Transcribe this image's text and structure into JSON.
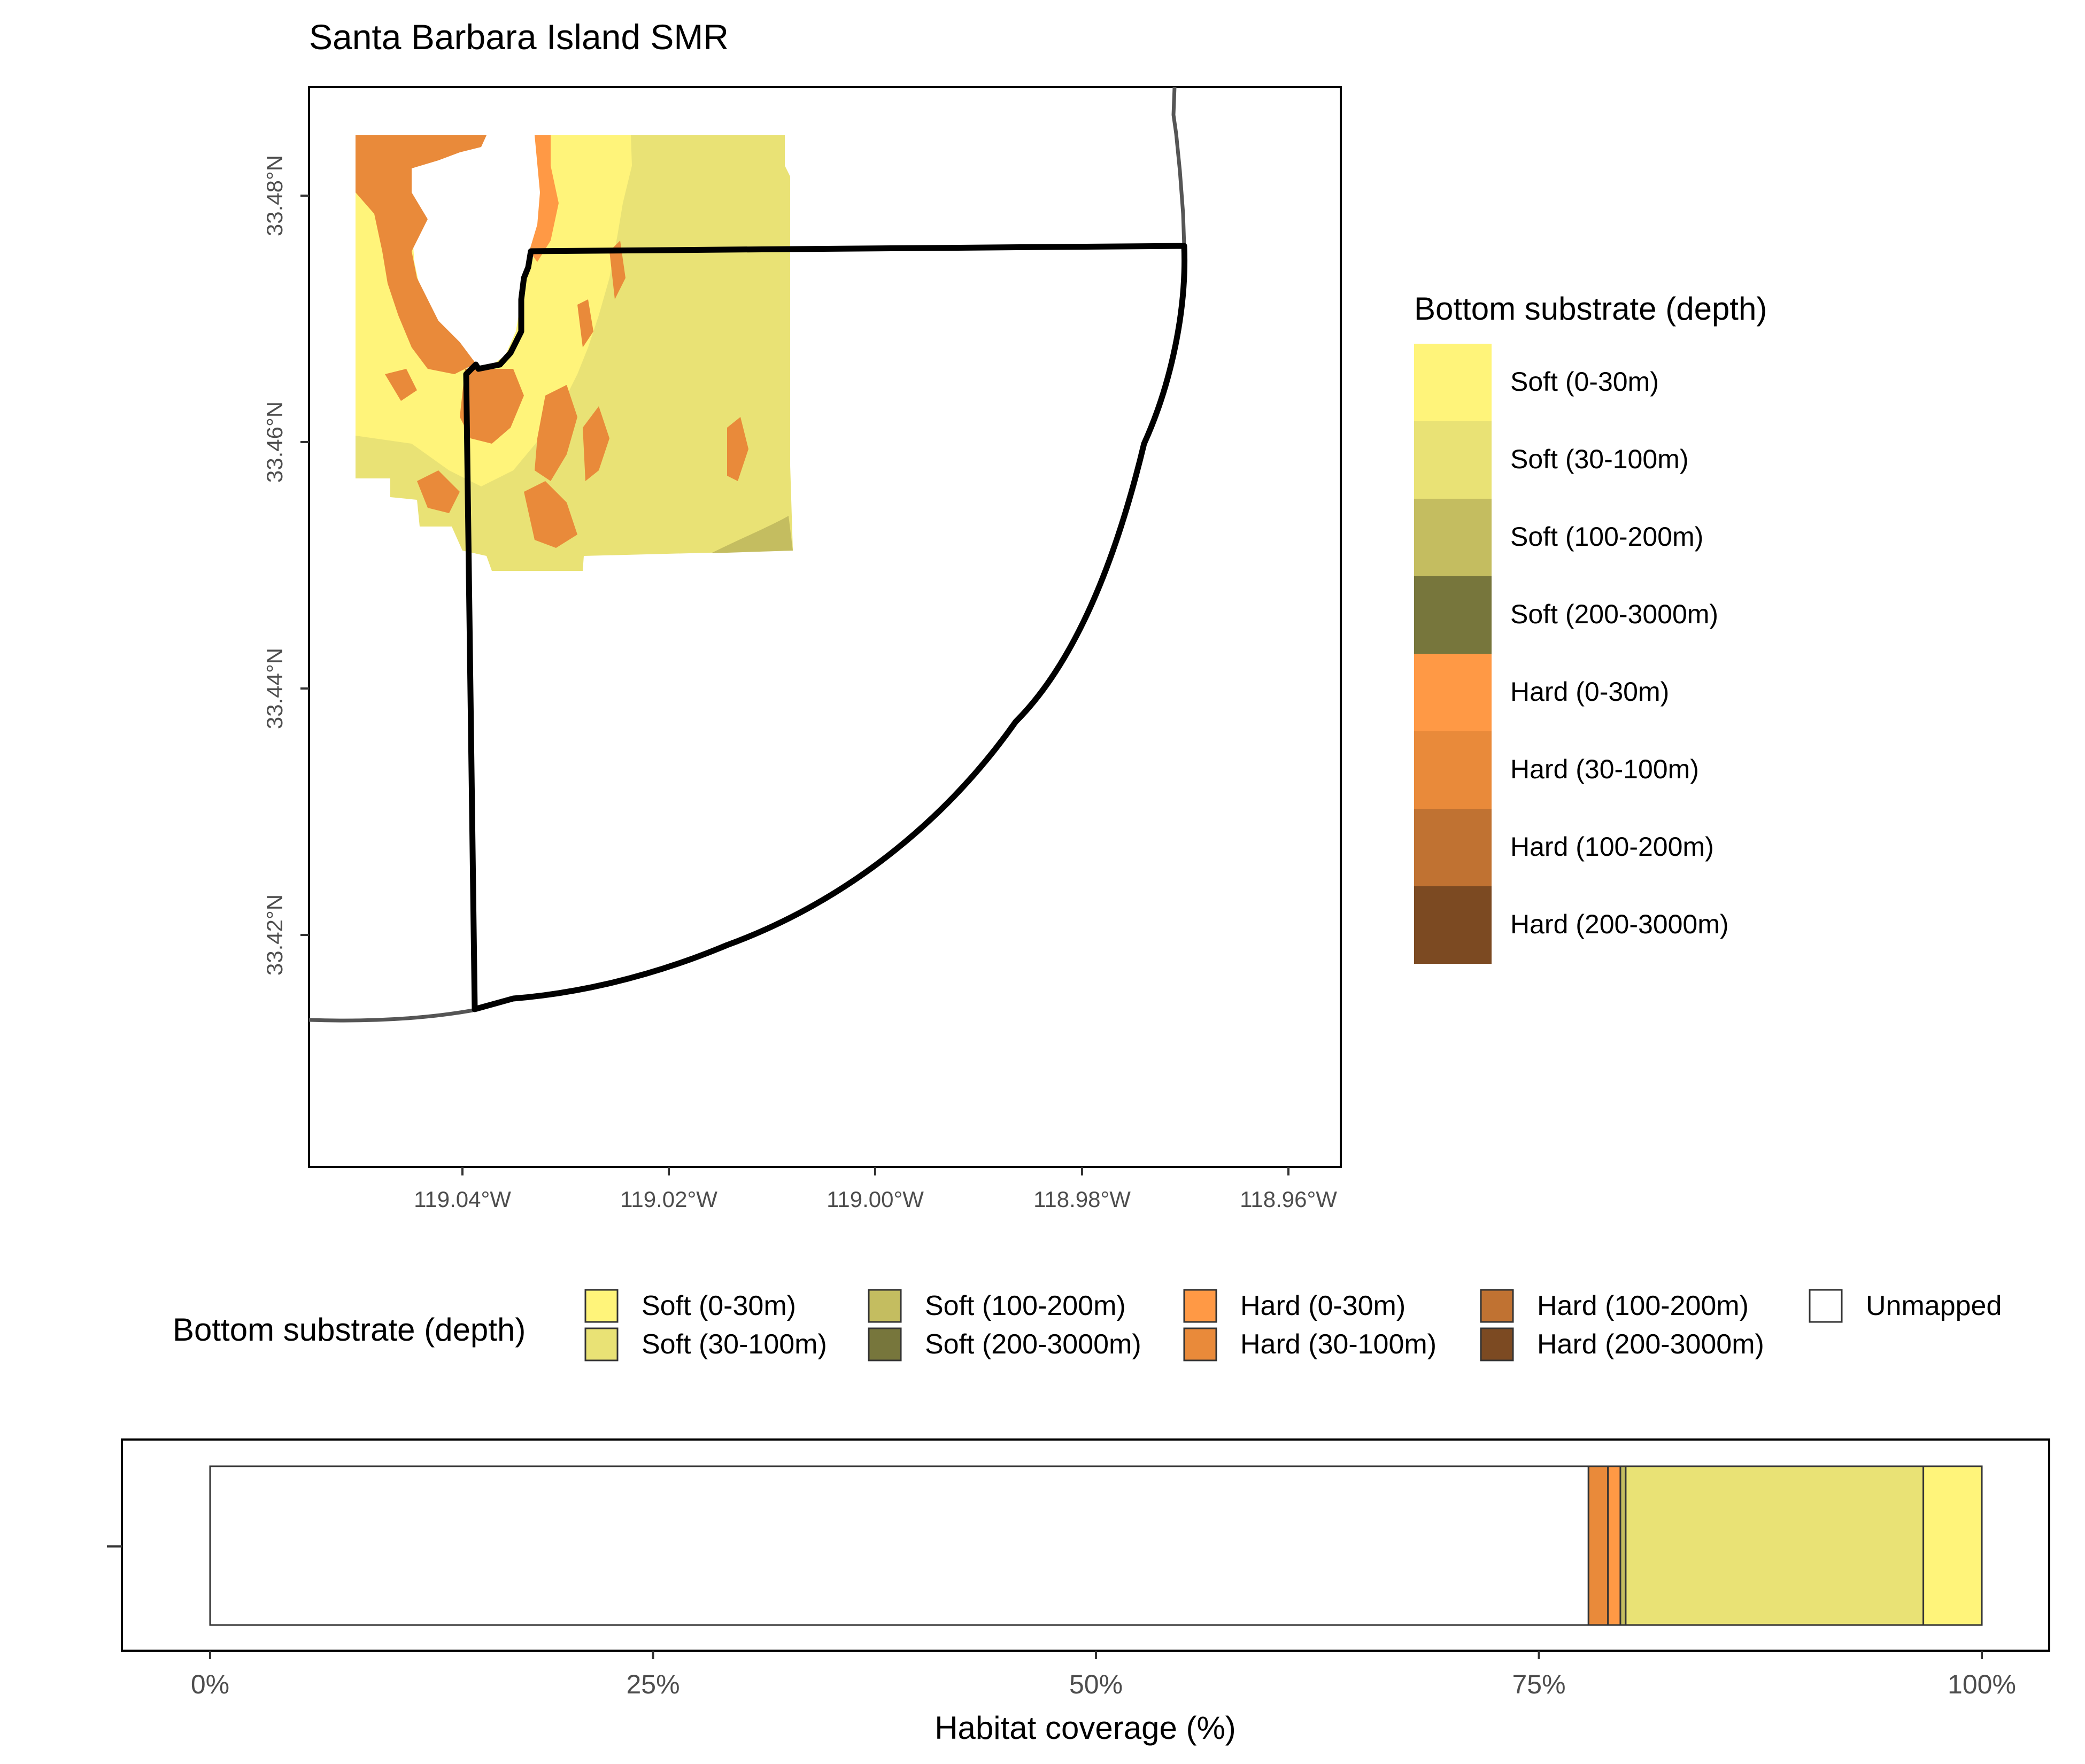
{
  "map": {
    "title": "Santa Barbara Island SMR",
    "lat_ticks": [
      {
        "value": 33.48,
        "label": "33.48°N"
      },
      {
        "value": 33.46,
        "label": "33.46°N"
      },
      {
        "value": 33.44,
        "label": "33.44°N"
      },
      {
        "value": 33.42,
        "label": "33.42°N"
      }
    ],
    "lon_ticks": [
      {
        "value": -119.04,
        "label": "119.04°W"
      },
      {
        "value": -119.02,
        "label": "119.02°W"
      },
      {
        "value": -119.0,
        "label": "119.00°W"
      },
      {
        "value": -118.98,
        "label": "118.98°W"
      },
      {
        "value": -118.96,
        "label": "118.96°W"
      }
    ],
    "legend_title": "Bottom substrate (depth)",
    "legend": [
      {
        "label": "Soft (0-30m)",
        "color": "#FFF47A"
      },
      {
        "label": "Soft (30-100m)",
        "color": "#E9E275"
      },
      {
        "label": "Soft (100-200m)",
        "color": "#C4BD60"
      },
      {
        "label": "Soft (200-3000m)",
        "color": "#77763C"
      },
      {
        "label": "Hard (0-30m)",
        "color": "#FF9945"
      },
      {
        "label": "Hard (30-100m)",
        "color": "#E98A3A"
      },
      {
        "label": "Hard (100-200m)",
        "color": "#C07232"
      },
      {
        "label": "Hard (200-3000m)",
        "color": "#7C4A22"
      }
    ]
  },
  "coverage": {
    "legend_title": "Bottom substrate (depth)",
    "legend": [
      {
        "label": "Soft (0-30m)",
        "color": "#FFF47A"
      },
      {
        "label": "Soft (30-100m)",
        "color": "#E9E275"
      },
      {
        "label": "Soft (100-200m)",
        "color": "#C4BD60"
      },
      {
        "label": "Soft (200-3000m)",
        "color": "#77763C"
      },
      {
        "label": "Hard (0-30m)",
        "color": "#FF9945"
      },
      {
        "label": "Hard (30-100m)",
        "color": "#E98A3A"
      },
      {
        "label": "Hard (100-200m)",
        "color": "#C07232"
      },
      {
        "label": "Hard (200-3000m)",
        "color": "#7C4A22"
      },
      {
        "label": "Unmapped",
        "color": "#FFFFFF"
      }
    ],
    "xlabel": "Habitat coverage (%)",
    "x_ticks": [
      {
        "value": 0,
        "label": "0%"
      },
      {
        "value": 25,
        "label": "25%"
      },
      {
        "value": 50,
        "label": "50%"
      },
      {
        "value": 75,
        "label": "75%"
      },
      {
        "value": 100,
        "label": "100%"
      }
    ]
  },
  "chart_data": {
    "type": "bar",
    "orientation": "horizontal",
    "stacked": true,
    "xlabel": "Habitat coverage (%)",
    "ylabel": "",
    "xlim": [
      0,
      100
    ],
    "series": [
      {
        "name": "Unmapped",
        "values": [
          77.8
        ]
      },
      {
        "name": "Hard (30-100m)",
        "values": [
          1.1
        ]
      },
      {
        "name": "Hard (0-30m)",
        "values": [
          0.7
        ]
      },
      {
        "name": "Soft (100-200m)",
        "values": [
          0.3
        ]
      },
      {
        "name": "Soft (30-100m)",
        "values": [
          16.8
        ]
      },
      {
        "name": "Soft (0-30m)",
        "values": [
          3.3
        ]
      }
    ],
    "segment_colors": {
      "Unmapped": "#FFFFFF",
      "Hard (30-100m)": "#E98A3A",
      "Hard (0-30m)": "#FF9945",
      "Soft (100-200m)": "#C4BD60",
      "Soft (30-100m)": "#E9E275",
      "Soft (0-30m)": "#FFF47A"
    }
  }
}
